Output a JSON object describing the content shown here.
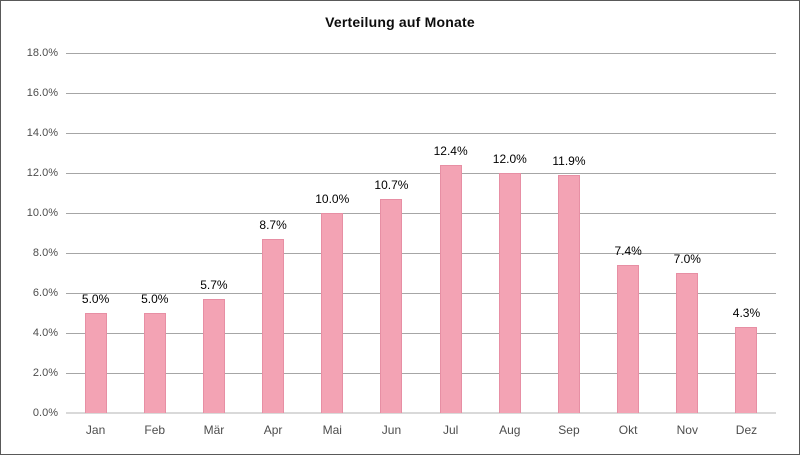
{
  "chart_data": {
    "type": "bar",
    "title": "Verteilung auf Monate",
    "categories": [
      "Jan",
      "Feb",
      "Mär",
      "Apr",
      "Mai",
      "Jun",
      "Jul",
      "Aug",
      "Sep",
      "Okt",
      "Nov",
      "Dez"
    ],
    "values": [
      5.0,
      5.0,
      5.7,
      8.7,
      10.0,
      10.7,
      12.4,
      12.0,
      11.9,
      7.4,
      7.0,
      4.3
    ],
    "value_labels": [
      "5.0%",
      "5.0%",
      "5.7%",
      "8.7%",
      "10.0%",
      "10.7%",
      "12.4%",
      "12.0%",
      "11.9%",
      "7.4%",
      "7.0%",
      "4.3%"
    ],
    "xlabel": "",
    "ylabel": "",
    "ylim": [
      0,
      18
    ],
    "yticks": [
      0,
      2,
      4,
      6,
      8,
      10,
      12,
      14,
      16,
      18
    ],
    "ytick_labels": [
      "0.0%",
      "2.0%",
      "4.0%",
      "6.0%",
      "8.0%",
      "10.0%",
      "12.0%",
      "14.0%",
      "16.0%",
      "18.0%"
    ],
    "grid": true,
    "legend": false,
    "colors": {
      "bar_fill": "#f3a3b4",
      "bar_border": "#e78fa4",
      "gridline": "#a6a6a6",
      "axis_line": "#d9d9d9",
      "frame_border": "#595959",
      "title_color": "#0d0d0d",
      "tick_label_color": "#4d4d4d",
      "value_label_color": "#000000"
    }
  }
}
